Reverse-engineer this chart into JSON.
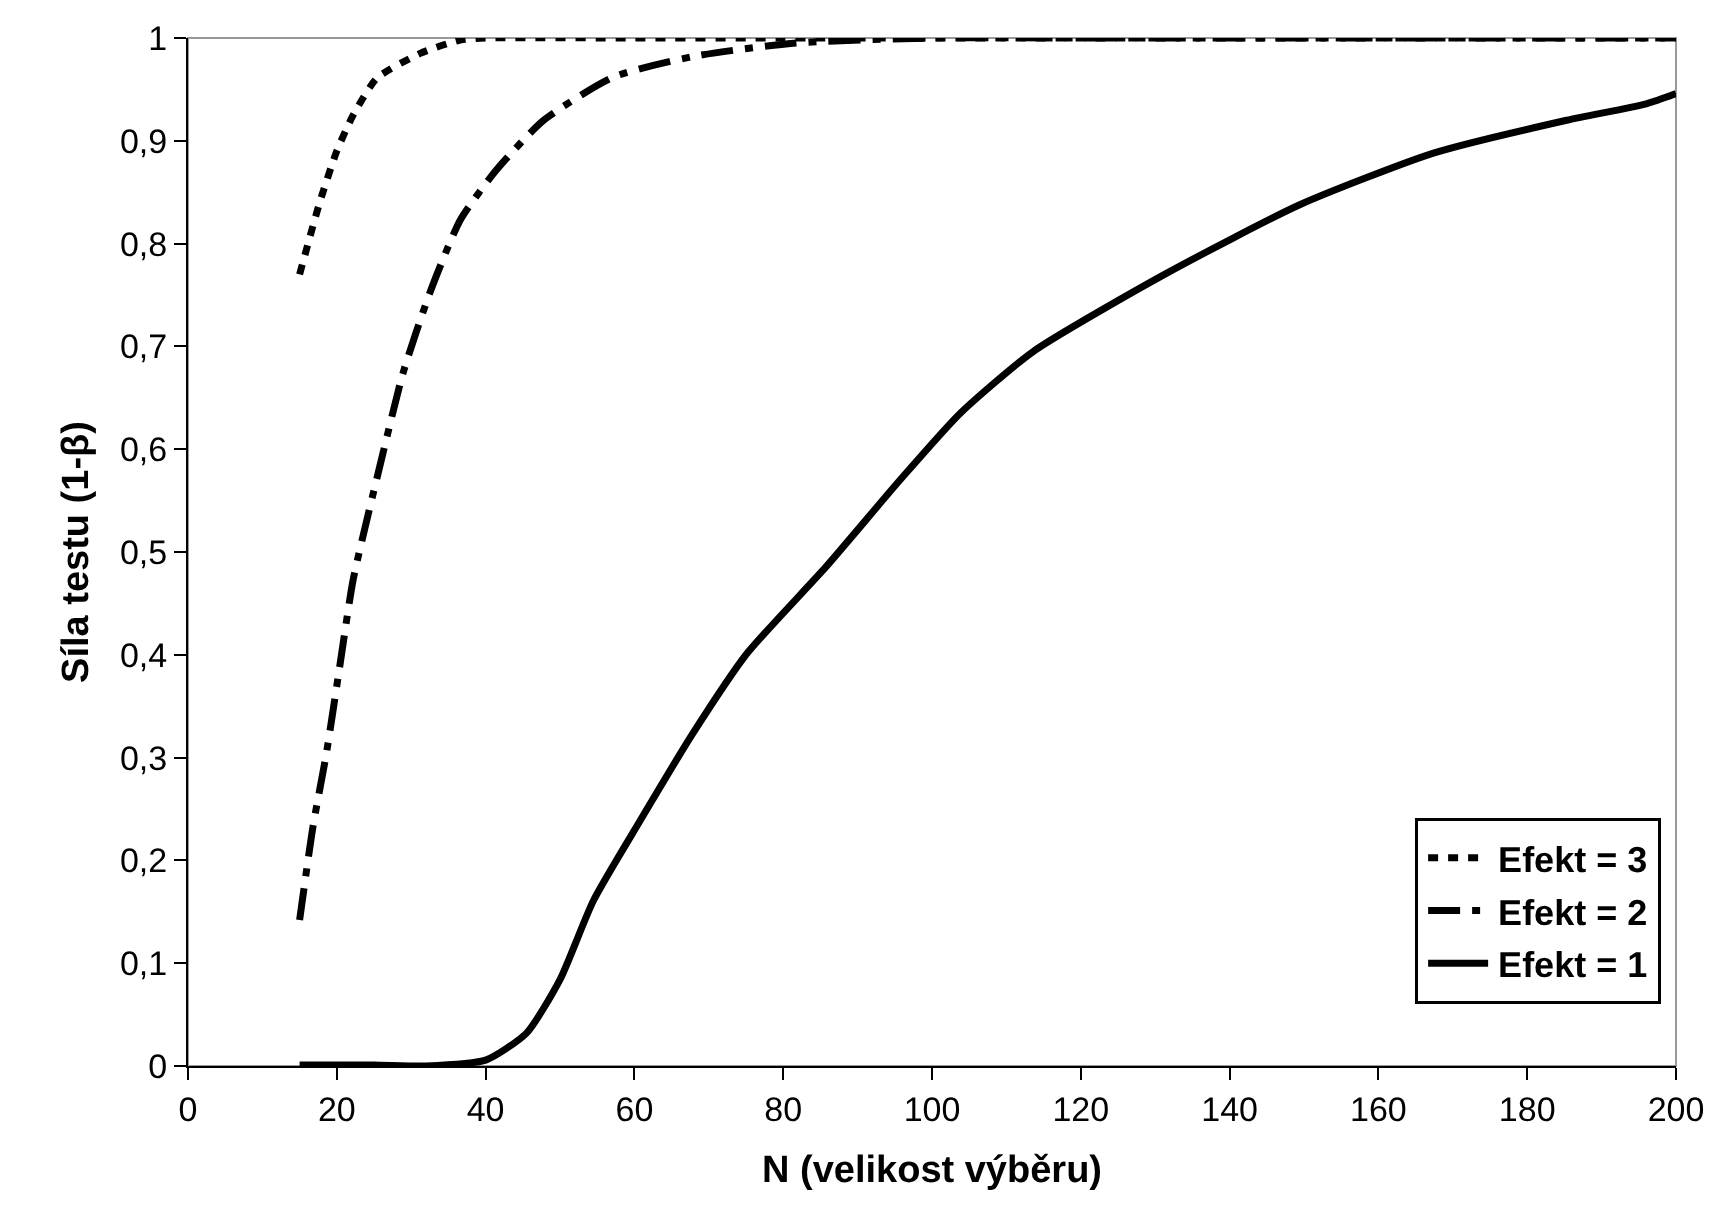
{
  "chart_data": {
    "type": "line",
    "xlabel": "N (velikost výběru)",
    "ylabel": "Síla testu (1-β)",
    "xlim": [
      0,
      200
    ],
    "xticks": [
      0,
      20,
      40,
      60,
      80,
      100,
      120,
      140,
      160,
      180,
      200
    ],
    "ylim": [
      0,
      1
    ],
    "yticks": [
      0,
      {
        "value": 0.1,
        "label": "0,1"
      },
      {
        "value": 0.2,
        "label": "0,2"
      },
      {
        "value": 0.3,
        "label": "0,3"
      },
      {
        "value": 0.4,
        "label": "0,4"
      },
      {
        "value": 0.5,
        "label": "0,5"
      },
      {
        "value": 0.6,
        "label": "0,6"
      },
      {
        "value": 0.7,
        "label": "0,7"
      },
      {
        "value": 0.8,
        "label": "0,8"
      },
      {
        "value": 0.9,
        "label": "0,9"
      },
      1
    ],
    "grid": false,
    "legend": "bottom right",
    "marker": "none",
    "series": [
      {
        "name": "Efekt = 3",
        "color": "#000000",
        "line_style": "dotted",
        "x": [
          15,
          17.7,
          20,
          22.2,
          25.4,
          31.2,
          36.6,
          40,
          60,
          80,
          100,
          120,
          140,
          160,
          180,
          200
        ],
        "values": [
          0.77,
          0.84,
          0.89,
          0.925,
          0.961,
          0.985,
          0.998,
          1,
          1,
          1,
          1,
          1,
          1,
          1,
          1,
          1
        ]
      },
      {
        "name": "Efekt = 2",
        "color": "#000000",
        "line_style": "dashed",
        "x": [
          15,
          16.8,
          18.6,
          20.4,
          22.2,
          25.8,
          28.9,
          32.5,
          36.6,
          41.5,
          47.8,
          57.2,
          67.9,
          81.4,
          100,
          120,
          140,
          160,
          180,
          200
        ],
        "values": [
          0.142,
          0.233,
          0.304,
          0.389,
          0.473,
          0.584,
          0.674,
          0.752,
          0.823,
          0.872,
          0.92,
          0.962,
          0.982,
          0.995,
          1,
          1,
          1,
          1,
          1,
          1
        ]
      },
      {
        "name": "Efekt = 1",
        "color": "#000000",
        "line_style": "solid",
        "x": [
          15,
          25,
          32,
          40.1,
          45.5,
          50,
          54.5,
          60.8,
          67.9,
          75.1,
          85.8,
          95.7,
          103.8,
          113.6,
          131.5,
          149.5,
          167.4,
          185.3,
          196,
          200
        ],
        "values": [
          0.001,
          0.001,
          0,
          0.006,
          0.032,
          0.084,
          0.161,
          0.239,
          0.324,
          0.401,
          0.486,
          0.57,
          0.635,
          0.695,
          0.771,
          0.838,
          0.888,
          0.92,
          0.936,
          0.946
        ]
      }
    ]
  }
}
